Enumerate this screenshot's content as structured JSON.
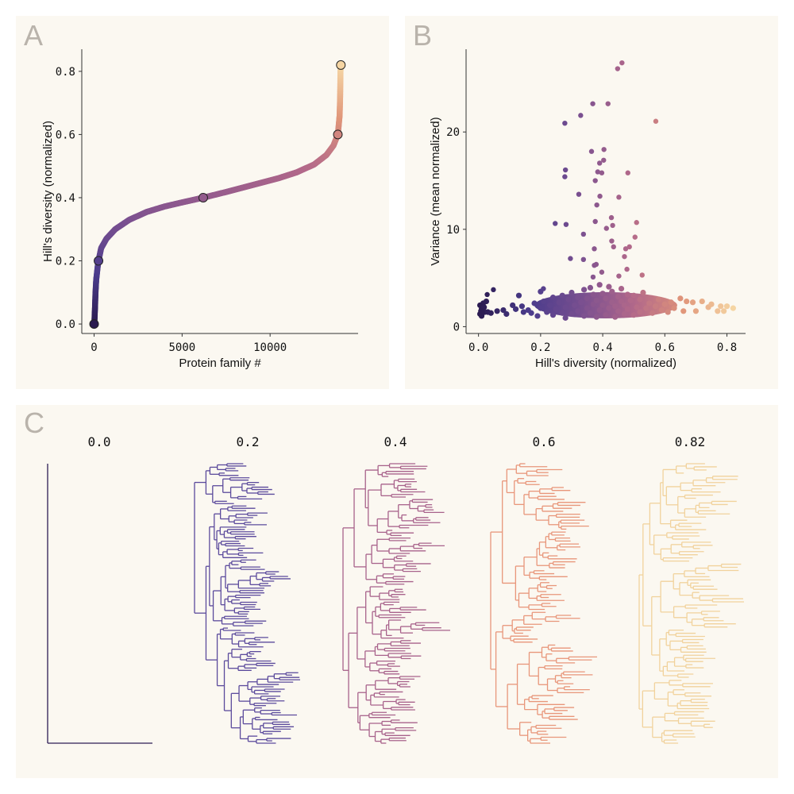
{
  "panels": {
    "a": "A",
    "b": "B",
    "c": "C"
  },
  "chart_data": [
    {
      "type": "scatter",
      "panel": "A",
      "xlabel": "Protein family #",
      "ylabel": "Hill's diversity (normalized)",
      "xlim": [
        -700,
        15000
      ],
      "ylim": [
        -0.03,
        0.87
      ],
      "xticks": [
        0,
        5000,
        10000
      ],
      "xtick_labels": [
        "0",
        "5000",
        "10000"
      ],
      "yticks": [
        0.0,
        0.2,
        0.4,
        0.6,
        0.8
      ],
      "ytick_labels": [
        "0.0",
        "0.2",
        "0.4",
        "0.6",
        "0.8"
      ],
      "curve": [
        [
          0,
          0
        ],
        [
          20,
          0.01
        ],
        [
          50,
          0.05
        ],
        [
          80,
          0.1
        ],
        [
          120,
          0.14
        ],
        [
          200,
          0.18
        ],
        [
          250,
          0.2
        ],
        [
          400,
          0.24
        ],
        [
          700,
          0.27
        ],
        [
          1200,
          0.3
        ],
        [
          2000,
          0.33
        ],
        [
          3000,
          0.355
        ],
        [
          4000,
          0.372
        ],
        [
          5000,
          0.385
        ],
        [
          6200,
          0.4
        ],
        [
          7500,
          0.418
        ],
        [
          9000,
          0.44
        ],
        [
          10500,
          0.462
        ],
        [
          11500,
          0.48
        ],
        [
          12500,
          0.505
        ],
        [
          13200,
          0.535
        ],
        [
          13600,
          0.565
        ],
        [
          13850,
          0.6
        ],
        [
          13950,
          0.66
        ],
        [
          13980,
          0.72
        ],
        [
          14000,
          0.8
        ],
        [
          14020,
          0.82
        ]
      ],
      "highlighted": [
        [
          0,
          0
        ],
        [
          250,
          0.2
        ],
        [
          6200,
          0.4
        ],
        [
          13850,
          0.6
        ],
        [
          14020,
          0.82
        ]
      ],
      "colormap": [
        "#2a1a4f",
        "#4b3c8c",
        "#7a5090",
        "#b3698a",
        "#e09579",
        "#f5d5a3"
      ],
      "grid": false
    },
    {
      "type": "scatter",
      "panel": "B",
      "xlabel": "Hill's diversity (normalized)",
      "ylabel": "Variance (mean normalized)",
      "xlim": [
        -0.04,
        0.86
      ],
      "ylim": [
        -0.7,
        28.5
      ],
      "xticks": [
        0.0,
        0.2,
        0.4,
        0.6,
        0.8
      ],
      "xtick_labels": [
        "0.0",
        "0.2",
        "0.4",
        "0.6",
        "0.8"
      ],
      "yticks": [
        0,
        10,
        20
      ],
      "ytick_labels": [
        "0",
        "10",
        "20"
      ],
      "grid": false,
      "outliers": [
        [
          0.462,
          27.1
        ],
        [
          0.448,
          26.5
        ],
        [
          0.368,
          22.9
        ],
        [
          0.417,
          22.9
        ],
        [
          0.329,
          21.7
        ],
        [
          0.278,
          20.9
        ],
        [
          0.571,
          21.1
        ],
        [
          0.404,
          18.2
        ],
        [
          0.364,
          18.0
        ],
        [
          0.403,
          17.1
        ],
        [
          0.39,
          16.8
        ],
        [
          0.28,
          16.1
        ],
        [
          0.384,
          15.9
        ],
        [
          0.397,
          15.8
        ],
        [
          0.481,
          15.8
        ],
        [
          0.278,
          15.4
        ],
        [
          0.376,
          15.0
        ],
        [
          0.323,
          13.6
        ],
        [
          0.391,
          13.4
        ],
        [
          0.452,
          13.3
        ],
        [
          0.381,
          12.5
        ],
        [
          0.428,
          11.2
        ],
        [
          0.247,
          10.6
        ],
        [
          0.282,
          10.5
        ],
        [
          0.376,
          10.8
        ],
        [
          0.509,
          10.7
        ],
        [
          0.432,
          10.4
        ],
        [
          0.412,
          10.1
        ],
        [
          0.338,
          9.5
        ],
        [
          0.504,
          9.2
        ],
        [
          0.429,
          8.8
        ],
        [
          0.373,
          8.0
        ],
        [
          0.435,
          8.2
        ],
        [
          0.474,
          8.0
        ],
        [
          0.486,
          8.2
        ],
        [
          0.296,
          7.0
        ],
        [
          0.338,
          6.9
        ],
        [
          0.47,
          7.2
        ],
        [
          0.379,
          6.4
        ],
        [
          0.373,
          6.3
        ],
        [
          0.397,
          5.6
        ],
        [
          0.478,
          5.9
        ],
        [
          0.452,
          5.2
        ],
        [
          0.527,
          5.3
        ],
        [
          0.369,
          5.1
        ],
        [
          0.048,
          3.8
        ],
        [
          0.028,
          3.3
        ],
        [
          0.209,
          3.9
        ]
      ],
      "cloud": [
        [
          0.005,
          1.3
        ],
        [
          0.01,
          1.8
        ],
        [
          0.015,
          2.4
        ],
        [
          0.005,
          2.2
        ],
        [
          0.02,
          1.5
        ],
        [
          0.01,
          1.1
        ],
        [
          0.018,
          2.0
        ],
        [
          0.008,
          1.6
        ],
        [
          0.025,
          2.6
        ],
        [
          0.012,
          1.4
        ],
        [
          0.03,
          1.5
        ],
        [
          0.04,
          1.4
        ],
        [
          0.06,
          1.6
        ],
        [
          0.08,
          1.7
        ],
        [
          0.09,
          1.3
        ],
        [
          0.11,
          2.2
        ],
        [
          0.12,
          1.8
        ],
        [
          0.13,
          3.2
        ],
        [
          0.14,
          2.1
        ],
        [
          0.145,
          1.5
        ],
        [
          0.16,
          1.7
        ],
        [
          0.17,
          1.4
        ],
        [
          0.18,
          2.4
        ],
        [
          0.19,
          1.1
        ],
        [
          0.2,
          1.9
        ],
        [
          0.2,
          3.6
        ],
        [
          0.21,
          2.6
        ],
        [
          0.22,
          1.5
        ],
        [
          0.23,
          2.2
        ],
        [
          0.24,
          1.2
        ],
        [
          0.24,
          3.0
        ],
        [
          0.25,
          1.8
        ],
        [
          0.26,
          2.5
        ],
        [
          0.27,
          1.4
        ],
        [
          0.27,
          3.2
        ],
        [
          0.28,
          0.9
        ],
        [
          0.28,
          2.0
        ],
        [
          0.29,
          2.8
        ],
        [
          0.3,
          1.3
        ],
        [
          0.3,
          3.5
        ],
        [
          0.31,
          2.2
        ],
        [
          0.32,
          1.6
        ],
        [
          0.32,
          3.0
        ],
        [
          0.33,
          2.5
        ],
        [
          0.34,
          1.1
        ],
        [
          0.34,
          3.8
        ],
        [
          0.35,
          1.9
        ],
        [
          0.35,
          2.9
        ],
        [
          0.36,
          1.4
        ],
        [
          0.36,
          4.0
        ],
        [
          0.37,
          2.3
        ],
        [
          0.37,
          3.3
        ],
        [
          0.38,
          1.0
        ],
        [
          0.38,
          2.7
        ],
        [
          0.39,
          1.7
        ],
        [
          0.39,
          4.3
        ],
        [
          0.4,
          2.2
        ],
        [
          0.4,
          3.4
        ],
        [
          0.41,
          1.2
        ],
        [
          0.41,
          2.9
        ],
        [
          0.42,
          1.9
        ],
        [
          0.42,
          4.1
        ],
        [
          0.43,
          2.5
        ],
        [
          0.43,
          3.6
        ],
        [
          0.44,
          1.0
        ],
        [
          0.44,
          2.1
        ],
        [
          0.45,
          3.1
        ],
        [
          0.45,
          1.6
        ],
        [
          0.46,
          2.6
        ],
        [
          0.46,
          3.9
        ],
        [
          0.47,
          1.3
        ],
        [
          0.47,
          2.2
        ],
        [
          0.48,
          3.3
        ],
        [
          0.48,
          1.8
        ],
        [
          0.49,
          2.7
        ],
        [
          0.5,
          1.2
        ],
        [
          0.5,
          3.2
        ],
        [
          0.51,
          2.0
        ],
        [
          0.52,
          1.5
        ],
        [
          0.52,
          2.8
        ],
        [
          0.53,
          3.5
        ],
        [
          0.54,
          1.9
        ],
        [
          0.55,
          2.4
        ],
        [
          0.56,
          1.4
        ],
        [
          0.57,
          2.1
        ],
        [
          0.58,
          2.8
        ],
        [
          0.59,
          1.7
        ],
        [
          0.6,
          2.3
        ],
        [
          0.61,
          1.5
        ],
        [
          0.62,
          2.5
        ],
        [
          0.63,
          1.9
        ],
        [
          0.65,
          2.9
        ],
        [
          0.66,
          1.6
        ],
        [
          0.67,
          2.6
        ],
        [
          0.69,
          2.5
        ],
        [
          0.7,
          1.6
        ],
        [
          0.72,
          2.6
        ],
        [
          0.74,
          2.0
        ],
        [
          0.75,
          2.3
        ],
        [
          0.77,
          1.6
        ],
        [
          0.78,
          2.1
        ],
        [
          0.79,
          1.6
        ],
        [
          0.8,
          2.1
        ],
        [
          0.82,
          1.9
        ]
      ]
    },
    {
      "type": "tree",
      "panel": "C",
      "trees": [
        {
          "label": "0.0",
          "color": "#2d1d55"
        },
        {
          "label": "0.2",
          "color": "#5b4a9c"
        },
        {
          "label": "0.4",
          "color": "#a8628b"
        },
        {
          "label": "0.6",
          "color": "#e8967a"
        },
        {
          "label": "0.82",
          "color": "#f1d29c"
        }
      ]
    }
  ]
}
